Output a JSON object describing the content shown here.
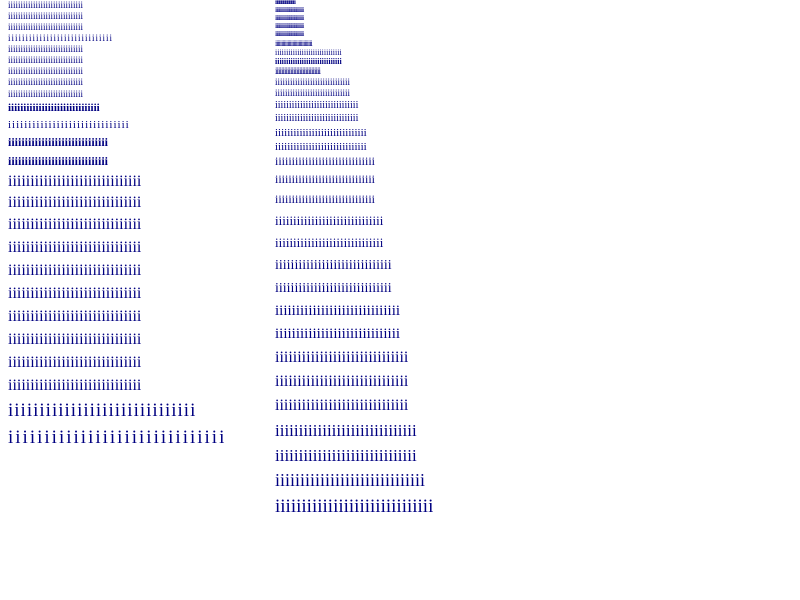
{
  "text_color": "#000080",
  "background_color": "#ffffff",
  "left_column": [
    "iiiiiiiiiiiiiiiiiiiiiiiiiiiiii",
    "iiiiiiiiiiiiiiiiiiiiiiiiiiiiii",
    "iiiiiiiiiiiiiiiiiiiiiiiiiiiiii",
    "iiiiiiiiiiiiiiiiiiiiiiiiiiiiii",
    "iiiiiiiiiiiiiiiiiiiiiiiiiiiiii",
    "iiiiiiiiiiiiiiiiiiiiiiiiiiiiii",
    "iiiiiiiiiiiiiiiiiiiiiiiiiiiiii",
    "iiiiiiiiiiiiiiiiiiiiiiiiiiiiii",
    "iiiiiiiiiiiiiiiiiiiiiiiiiiiiii",
    "iiiiiiiiiiiiiiiiiiiiiiiiiiiiii",
    "iiiiiiiiiiiiiiiiiiiiiiiiiiiiii",
    "iiiiiiiiiiiiiiiiiiiiiiiiiiiiii",
    "iiiiiiiiiiiiiiiiiiiiiiiiiiiiii",
    "iiiiiiiiiiiiiiiiiiiiiiiiiiiiii",
    "iiiiiiiiiiiiiiiiiiiiiiiiiiiiii",
    "iiiiiiiiiiiiiiiiiiiiiiiiiiiiii",
    "iiiiiiiiiiiiiiiiiiiiiiiiiiiiii",
    "iiiiiiiiiiiiiiiiiiiiiiiiiiiiii",
    "iiiiiiiiiiiiiiiiiiiiiiiiiiiiii",
    "iiiiiiiiiiiiiiiiiiiiiiiiiiiiii",
    "iiiiiiiiiiiiiiiiiiiiiiiiiiiiii",
    "iiiiiiiiiiiiiiiiiiiiiiiiiiiiii",
    "iiiiiiiiiiiiiiiiiiiiiiiiiiiiii",
    "iiiiiiiiiiiiiiiiiiiiiiiiiiiiii",
    "iiiiiiiiiiiiiiiiiiiiiiiiiiiiii"
  ],
  "right_column": [
    "iiiiiiiiiiiiiiiiiiiiiiiiiiiiii",
    "iiiiiiiiiiiiiiiiiiiiiiiiiiiiii",
    "iiiiiiiiiiiiiiiiiiiiiiiiiiiiii",
    "iiiiiiiiiiiiiiiiiiiiiiiiiiiiii",
    "iiiiiiiiiiiiiiiiiiiiiiiiiiiiii",
    "iiiiiiiiiiiiiiiiiiiiiiiiiiiiii",
    "iiiiiiiiiiiiiiiiiiiiiiiiiiiiii",
    "iiiiiiiiiiiiiiiiiiiiiiiiiiiiii",
    "iiiiiiiiiiiiiiiiiiiiiiiiiiiiii",
    "iiiiiiiiiiiiiiiiiiiiiiiiiiiiii",
    "iiiiiiiiiiiiiiiiiiiiiiiiiiiiii",
    "iiiiiiiiiiiiiiiiiiiiiiiiiiiiii",
    "iiiiiiiiiiiiiiiiiiiiiiiiiiiiii",
    "iiiiiiiiiiiiiiiiiiiiiiiiiiiiii",
    "iiiiiiiiiiiiiiiiiiiiiiiiiiiiii",
    "iiiiiiiiiiiiiiiiiiiiiiiiiiiiii",
    "iiiiiiiiiiiiiiiiiiiiiiiiiiiiii",
    "iiiiiiiiiiiiiiiiiiiiiiiiiiiiii",
    "iiiiiiiiiiiiiiiiiiiiiiiiiiiiii",
    "iiiiiiiiiiiiiiiiiiiiiiiiiiiiii",
    "iiiiiiiiiiiiiiiiiiiiiiiiiiiiii",
    "iiiiiiiiiiiiiiiiiiiiiiiiiiiiii",
    "iiiiiiiiiiiiiiiiiiiiiiiiiiiiii",
    "iiiiiiiiiiiiiiiiiiiiiiiiiiiiii",
    "iiiiiiiiiiiiiiiiiiiiiiiiiiiiii",
    "iiiiiiiiiiiiiiiiiiiiiiiiiiiiii",
    "iiiiiiiiiiiiiiiiiiiiiiiiiiiiii",
    "iiiiiiiiiiiiiiiiiiiiiiiiiiiiii",
    "iiiiiiiiiiiiiiiiiiiiiiiiiiiiii",
    "iiiiiiiiiiiiiiiiiiiiiiiiiiiiii",
    "iiiiiiiiiiiiiiiiiiiiiiiiiiiiii"
  ]
}
